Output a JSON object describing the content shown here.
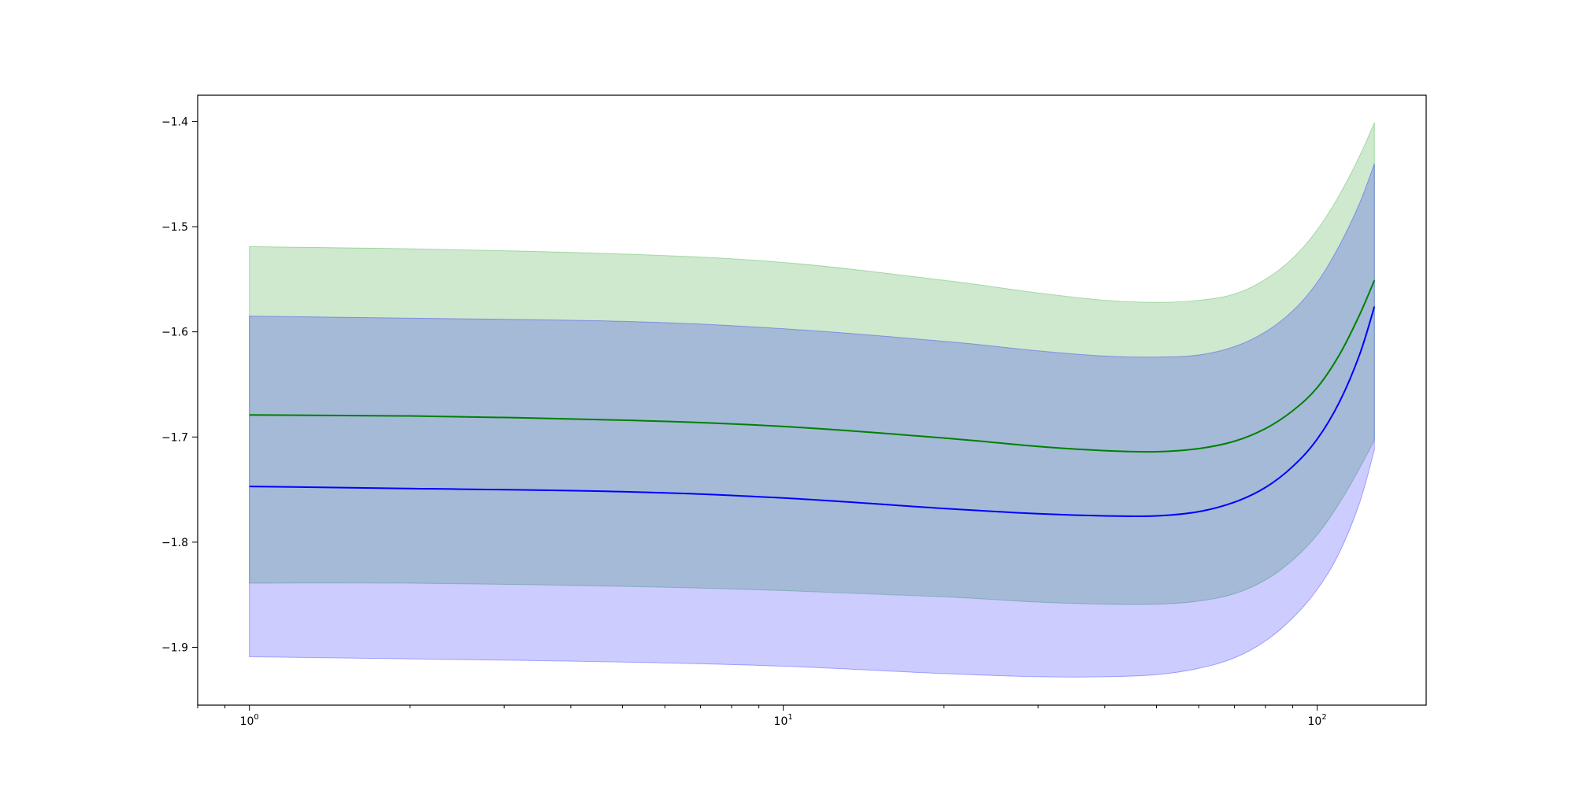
{
  "chart_data": {
    "type": "area",
    "x_scale": "log",
    "xlim": [
      0.8,
      160
    ],
    "ylim": [
      -1.955,
      -1.375
    ],
    "grid": false,
    "x_ticks": [
      {
        "value": 1,
        "base": "10",
        "exp": "0"
      },
      {
        "value": 10,
        "base": "10",
        "exp": "1"
      },
      {
        "value": 100,
        "base": "10",
        "exp": "2"
      }
    ],
    "y_ticks": [
      {
        "value": -1.4,
        "label": "−1.4"
      },
      {
        "value": -1.5,
        "label": "−1.5"
      },
      {
        "value": -1.6,
        "label": "−1.6"
      },
      {
        "value": -1.7,
        "label": "−1.7"
      },
      {
        "value": -1.8,
        "label": "−1.8"
      },
      {
        "value": -1.9,
        "label": "−1.9"
      }
    ],
    "x": [
      1,
      2,
      5,
      10,
      20,
      30,
      40,
      50,
      60,
      70,
      80,
      90,
      100,
      110,
      120,
      128
    ],
    "series": [
      {
        "color": "#2ca02c",
        "line_color": "#008000",
        "fill_color": "#2ca02c",
        "fill_alpha": 0.23,
        "mean": [
          -1.679,
          -1.68,
          -1.684,
          -1.69,
          -1.701,
          -1.709,
          -1.713,
          -1.714,
          -1.711,
          -1.704,
          -1.692,
          -1.675,
          -1.653,
          -1.622,
          -1.584,
          -1.551
        ],
        "upper": [
          -1.519,
          -1.521,
          -1.526,
          -1.534,
          -1.551,
          -1.563,
          -1.57,
          -1.572,
          -1.57,
          -1.564,
          -1.55,
          -1.53,
          -1.503,
          -1.47,
          -1.433,
          -1.401
        ],
        "lower": [
          -1.839,
          -1.839,
          -1.842,
          -1.846,
          -1.852,
          -1.857,
          -1.859,
          -1.859,
          -1.856,
          -1.849,
          -1.836,
          -1.817,
          -1.793,
          -1.763,
          -1.73,
          -1.703
        ]
      },
      {
        "color": "#0000ff",
        "line_color": "#0000ff",
        "fill_color": "#0000ff",
        "fill_alpha": 0.2,
        "mean": [
          -1.747,
          -1.749,
          -1.752,
          -1.758,
          -1.768,
          -1.773,
          -1.775,
          -1.775,
          -1.771,
          -1.762,
          -1.748,
          -1.728,
          -1.702,
          -1.667,
          -1.622,
          -1.576
        ],
        "upper": [
          -1.585,
          -1.587,
          -1.59,
          -1.597,
          -1.609,
          -1.618,
          -1.623,
          -1.624,
          -1.622,
          -1.614,
          -1.6,
          -1.58,
          -1.553,
          -1.518,
          -1.478,
          -1.44
        ],
        "lower": [
          -1.909,
          -1.911,
          -1.914,
          -1.918,
          -1.925,
          -1.928,
          -1.928,
          -1.926,
          -1.92,
          -1.91,
          -1.894,
          -1.872,
          -1.845,
          -1.81,
          -1.763,
          -1.712
        ]
      }
    ]
  }
}
